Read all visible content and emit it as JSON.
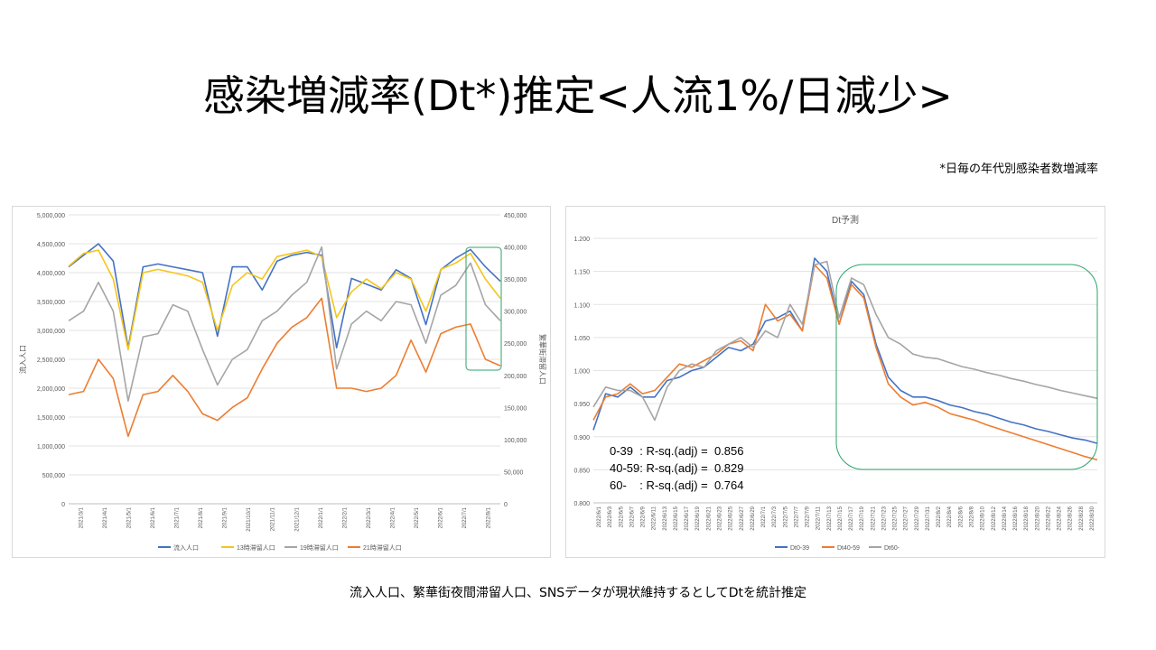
{
  "title": "感染増減率(Dt*)推定<人流1%/日減少>",
  "footnote": "*日毎の年代別感染者数増減率",
  "caption": "流入人口、繁華街夜間滞留人口、SNSデータが現状維持するとしてDtを統計推定",
  "chart_data": [
    {
      "type": "line",
      "title": "",
      "ylabel": "流入人口",
      "y2label": "繁華街滞留人口",
      "ylim": [
        0,
        5000000
      ],
      "y2lim": [
        0,
        450000
      ],
      "yticks": [
        "5,000,000",
        "4,500,000",
        "4,000,000",
        "3,500,000",
        "3,000,000",
        "2,500,000",
        "2,000,000",
        "1,500,000",
        "1,000,000",
        "500,000",
        "0"
      ],
      "y2ticks": [
        "450,000",
        "400,000",
        "350,000",
        "300,000",
        "250,000",
        "200,000",
        "150,000",
        "100,000",
        "50,000",
        "0"
      ],
      "xticks": [
        "2021/3/1",
        "2021/4/1",
        "2021/5/1",
        "2021/6/1",
        "2021/7/1",
        "2021/8/1",
        "2021/9/1",
        "2021/10/1",
        "2021/11/1",
        "2021/12/1",
        "2022/1/1",
        "2022/2/1",
        "2022/3/1",
        "2022/4/1",
        "2022/5/1",
        "2022/6/1",
        "2022/7/1",
        "2022/8/1"
      ],
      "legend_position": "bottom",
      "grid": true,
      "series": [
        {
          "name": "流入人口",
          "axis": "left",
          "color": "#4472c4",
          "values": [
            4100000,
            4300000,
            4500000,
            4200000,
            2700000,
            4100000,
            4150000,
            4100000,
            4050000,
            4000000,
            2900000,
            4100000,
            4100000,
            3700000,
            4200000,
            4300000,
            4350000,
            4300000,
            2700000,
            3900000,
            3800000,
            3700000,
            4050000,
            3900000,
            3100000,
            4050000,
            4250000,
            4400000,
            4100000,
            3850000
          ]
        },
        {
          "name": "13時滞留人口",
          "axis": "right",
          "color": "#f5c518",
          "values": [
            370000,
            390000,
            395000,
            350000,
            240000,
            360000,
            365000,
            360000,
            355000,
            345000,
            270000,
            340000,
            360000,
            350000,
            385000,
            390000,
            395000,
            385000,
            290000,
            330000,
            350000,
            335000,
            360000,
            350000,
            300000,
            365000,
            375000,
            390000,
            350000,
            320000
          ]
        },
        {
          "name": "19時滞留人口",
          "axis": "right",
          "color": "#a5a5a5",
          "values": [
            285000,
            300000,
            345000,
            300000,
            160000,
            260000,
            265000,
            310000,
            300000,
            240000,
            185000,
            225000,
            240000,
            285000,
            300000,
            325000,
            345000,
            400000,
            210000,
            280000,
            300000,
            285000,
            315000,
            310000,
            250000,
            325000,
            340000,
            375000,
            310000,
            285000
          ]
        },
        {
          "name": "21時滞留人口",
          "axis": "right",
          "color": "#ed7d31",
          "values": [
            170000,
            175000,
            225000,
            195000,
            105000,
            170000,
            175000,
            200000,
            175000,
            140000,
            130000,
            150000,
            165000,
            210000,
            250000,
            275000,
            290000,
            320000,
            180000,
            180000,
            175000,
            180000,
            200000,
            255000,
            205000,
            265000,
            275000,
            280000,
            225000,
            215000
          ]
        }
      ]
    },
    {
      "type": "line",
      "title": "Dt予測",
      "ylim": [
        0.8,
        1.2
      ],
      "yticks": [
        "1.200",
        "1.150",
        "1.100",
        "1.050",
        "1.000",
        "0.950",
        "0.900",
        "0.850",
        "0.800"
      ],
      "xticks": [
        "2022/6/1",
        "2022/6/3",
        "2022/6/5",
        "2022/6/7",
        "2022/6/9",
        "2022/6/11",
        "2022/6/13",
        "2022/6/15",
        "2022/6/17",
        "2022/6/19",
        "2022/6/21",
        "2022/6/23",
        "2022/6/25",
        "2022/6/27",
        "2022/6/29",
        "2022/7/1",
        "2022/7/3",
        "2022/7/5",
        "2022/7/7",
        "2022/7/9",
        "2022/7/11",
        "2022/7/13",
        "2022/7/15",
        "2022/7/17",
        "2022/7/19",
        "2022/7/21",
        "2022/7/23",
        "2022/7/25",
        "2022/7/27",
        "2022/7/29",
        "2022/7/31",
        "2022/8/2",
        "2022/8/4",
        "2022/8/6",
        "2022/8/8",
        "2022/8/10",
        "2022/8/12",
        "2022/8/14",
        "2022/8/16",
        "2022/8/18",
        "2022/8/20",
        "2022/8/22",
        "2022/8/24",
        "2022/8/26",
        "2022/8/28",
        "2022/8/30"
      ],
      "legend_position": "bottom",
      "grid": true,
      "series": [
        {
          "name": "Dt0-39",
          "color": "#4472c4",
          "values": [
            0.91,
            0.965,
            0.96,
            0.975,
            0.96,
            0.96,
            0.985,
            0.99,
            1.0,
            1.005,
            1.02,
            1.035,
            1.03,
            1.04,
            1.075,
            1.08,
            1.09,
            1.06,
            1.17,
            1.15,
            1.07,
            1.135,
            1.115,
            1.04,
            0.99,
            0.97,
            0.96,
            0.96,
            0.955,
            0.948,
            0.944,
            0.938,
            0.934,
            0.928,
            0.922,
            0.918,
            0.912,
            0.908,
            0.903,
            0.898,
            0.895,
            0.89
          ]
        },
        {
          "name": "Dt40-59",
          "color": "#ed7d31",
          "values": [
            0.925,
            0.96,
            0.965,
            0.98,
            0.965,
            0.97,
            0.99,
            1.01,
            1.005,
            1.015,
            1.025,
            1.04,
            1.045,
            1.03,
            1.1,
            1.075,
            1.085,
            1.06,
            1.16,
            1.14,
            1.07,
            1.13,
            1.11,
            1.035,
            0.98,
            0.96,
            0.948,
            0.952,
            0.945,
            0.935,
            0.93,
            0.925,
            0.918,
            0.912,
            0.906,
            0.9,
            0.894,
            0.888,
            0.882,
            0.876,
            0.87,
            0.865
          ]
        },
        {
          "name": "Dt60-",
          "color": "#a5a5a5",
          "values": [
            0.945,
            0.975,
            0.97,
            0.97,
            0.96,
            0.925,
            0.975,
            1.0,
            1.01,
            1.005,
            1.03,
            1.04,
            1.05,
            1.035,
            1.06,
            1.05,
            1.1,
            1.07,
            1.16,
            1.165,
            1.08,
            1.14,
            1.13,
            1.085,
            1.05,
            1.04,
            1.025,
            1.02,
            1.018,
            1.012,
            1.006,
            1.002,
            0.997,
            0.993,
            0.988,
            0.984,
            0.979,
            0.975,
            0.97,
            0.966,
            0.962,
            0.958
          ]
        }
      ],
      "annotations": [
        "0-39  : R-sq.(adj) =  0.856",
        "40-59: R-sq.(adj) =  0.829",
        "60-    : R-sq.(adj) =  0.764"
      ]
    }
  ]
}
